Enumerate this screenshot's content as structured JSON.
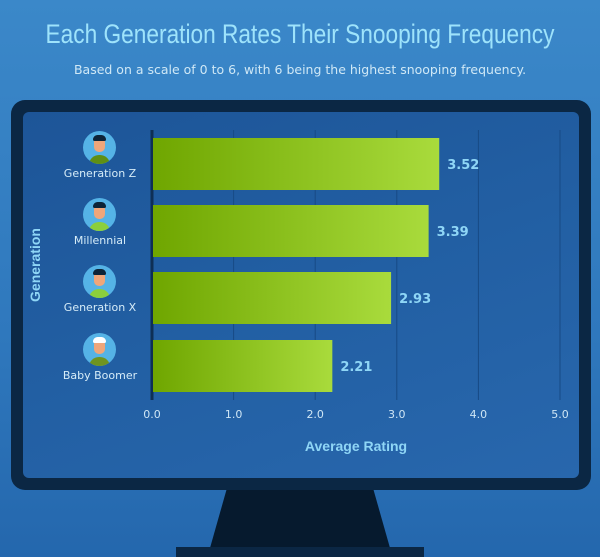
{
  "chart_data": {
    "type": "bar",
    "orientation": "horizontal",
    "title": "Each Generation Rates Their Snooping Frequency",
    "subtitle": "Based on a scale of 0 to 6, with 6 being the highest snooping frequency.",
    "xlabel": "Average Rating",
    "ylabel": "Generation",
    "categories": [
      "Generation Z",
      "Millennial",
      "Generation X",
      "Baby Boomer"
    ],
    "values": [
      3.52,
      3.39,
      2.93,
      2.21
    ],
    "data_labels": [
      "3.52",
      "3.39",
      "2.93",
      "2.21"
    ],
    "xlim": [
      0,
      5
    ],
    "xticks": [
      "0.0",
      "1.0",
      "2.0",
      "3.0",
      "4.0",
      "5.0"
    ],
    "grid": "vertical",
    "colors": {
      "bar_start": "#6fa600",
      "bar_end": "#a9db3c",
      "label": "#8fd6f6",
      "background": "#3b88c9",
      "screen": "#1f5a9e",
      "frame": "#0b2744"
    }
  },
  "icons": [
    "avatar-gen-z-icon",
    "avatar-millennial-icon",
    "avatar-gen-x-icon",
    "avatar-baby-boomer-icon"
  ]
}
